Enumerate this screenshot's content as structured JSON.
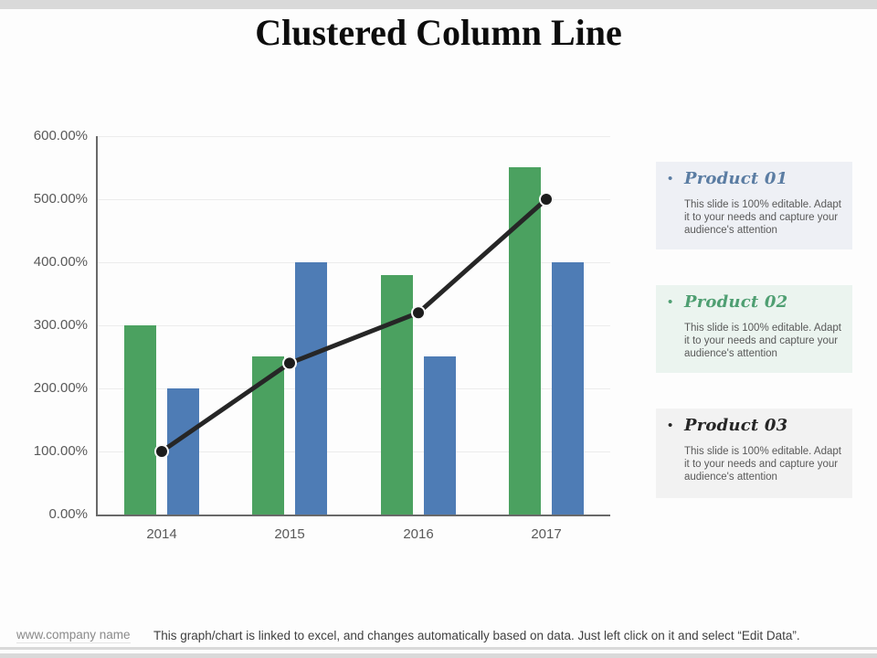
{
  "slide": {
    "title": "Clustered Column Line",
    "footer": {
      "company": "www.company name",
      "note": "This graph/chart is linked to excel,  and changes automatically based on data. Just left click on it and select “Edit Data”."
    }
  },
  "products": [
    {
      "bullet": "•",
      "title": "Product 01",
      "body": "This slide is 100% editable.  Adapt it to your needs and capture your audience's attention",
      "accent": "#5b7da3",
      "bg": "#eef0f5"
    },
    {
      "bullet": "•",
      "title": "Product 02",
      "body": "This slide is 100% editable.  Adapt it to your needs and capture your audience's attention",
      "accent": "#4f9f72",
      "bg": "#ebf4ef"
    },
    {
      "bullet": "•",
      "title": "Product 03",
      "body": "This slide is 100% editable.  Adapt it to your needs and capture your audience's attention",
      "accent": "#262626",
      "bg": "#f2f2f2"
    }
  ],
  "chart_data": {
    "type": "bar",
    "subtype": "clustered-column-with-line",
    "title": "Clustered Column Line",
    "categories": [
      "2014",
      "2015",
      "2016",
      "2017"
    ],
    "series": [
      {
        "name": "Product 01",
        "kind": "column",
        "color": "#4ba160",
        "values": [
          300,
          250,
          380,
          550
        ]
      },
      {
        "name": "Product 02",
        "kind": "column",
        "color": "#4e7cb5",
        "values": [
          200,
          400,
          250,
          400
        ]
      },
      {
        "name": "Product 03",
        "kind": "line",
        "color": "#262626",
        "marker_color": "#1c1c1c",
        "values": [
          100,
          240,
          320,
          500
        ]
      }
    ],
    "xlabel": "",
    "ylabel": "",
    "ylim": [
      0,
      600
    ],
    "y_ticks": [
      "0.00%",
      "100.00%",
      "200.00%",
      "300.00%",
      "400.00%",
      "500.00%",
      "600.00%"
    ],
    "grid": true,
    "legend": false,
    "axis_color": "#696969",
    "gridline_color": "#ececec"
  }
}
